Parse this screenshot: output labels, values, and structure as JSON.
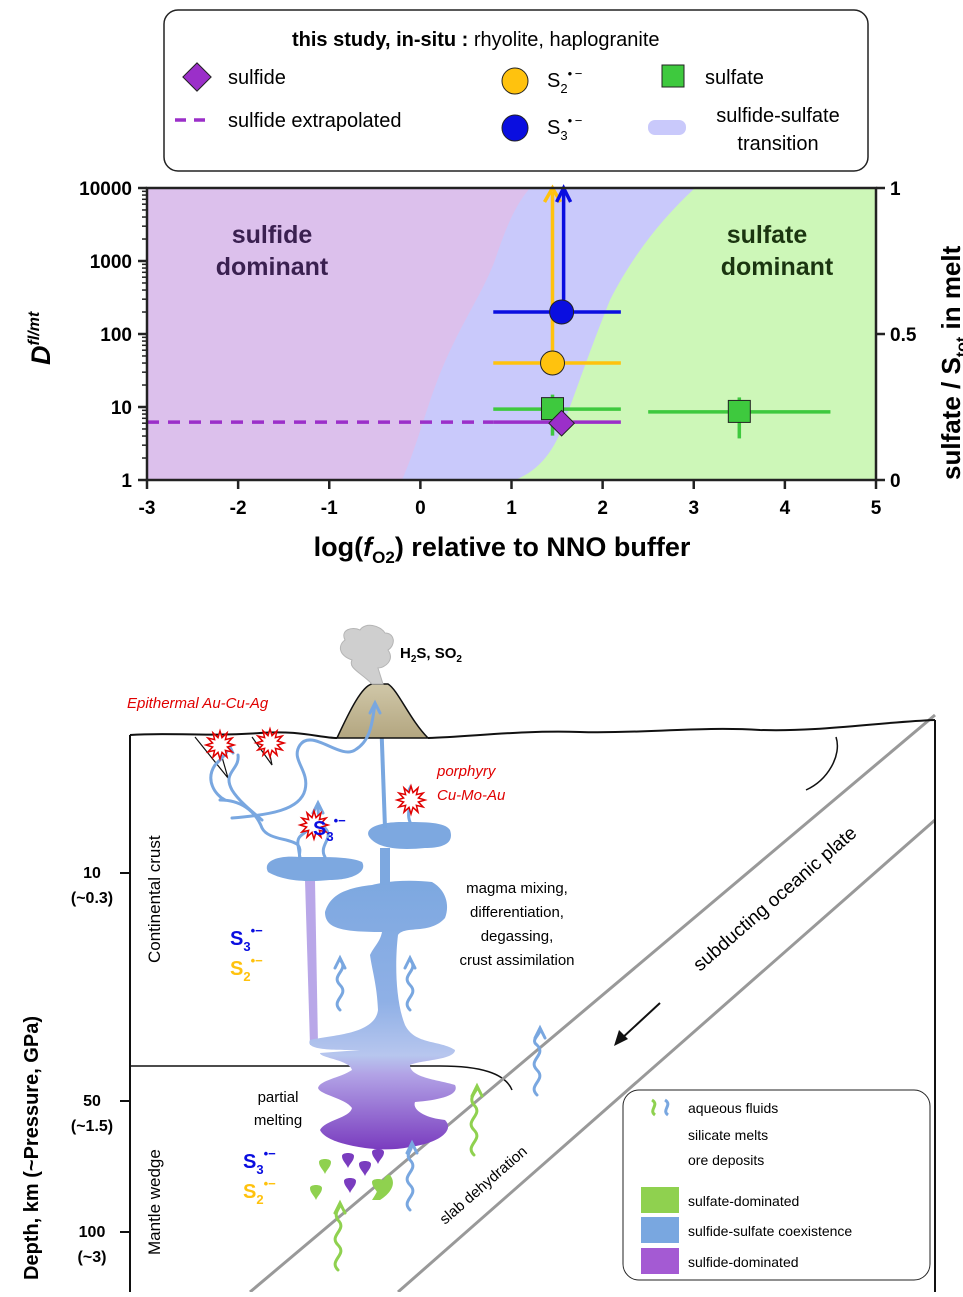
{
  "legend": {
    "title_bold": "this study, in-situ :",
    "title_rest": " rhyolite, haplogranite",
    "sulfide": "sulfide",
    "sulfide_extrapolated": "sulfide extrapolated",
    "s2_base": "S",
    "s2_sub": "2",
    "s2_sup": "• −",
    "s3_base": "S",
    "s3_sub": "3",
    "s3_sup": "• −",
    "sulfate": "sulfate",
    "transition_line1": "sulfide-sulfate",
    "transition_line2": "transition"
  },
  "chart_data": {
    "type": "scatter",
    "xlabel_prefix": "log(",
    "xlabel_f": "f",
    "xlabel_sub": "O2",
    "xlabel_suffix": ") relative to NNO buffer",
    "ylabel_main": "D",
    "ylabel_sup": "fl/mt",
    "y2label_prefix": "sulfate / S",
    "y2label_sub": "tot",
    "y2label_suffix": " in melt",
    "xlim": [
      -3,
      5
    ],
    "ylim": [
      1,
      10000
    ],
    "yscale": "log",
    "y2lim": [
      0,
      1
    ],
    "x_ticks": [
      "-3",
      "-2",
      "-1",
      "0",
      "1",
      "2",
      "3",
      "4",
      "5"
    ],
    "y_ticks": [
      "1",
      "10",
      "100",
      "1000",
      "10000"
    ],
    "y2_ticks": [
      "0",
      "0.5",
      "1"
    ],
    "regions": [
      {
        "label_line1": "sulfide",
        "label_line2": "dominant",
        "color": "#dcc0ec"
      },
      {
        "label_line1": "sulfate",
        "label_line2": "dominant",
        "color": "#cdf7b8"
      }
    ],
    "transition_color": "#c9c9fb",
    "series": [
      {
        "name": "sulfide",
        "marker": "diamond",
        "color": "#9b2fc9",
        "x": 1.55,
        "y": 6.0,
        "xerr": [
          0.8,
          2.2
        ]
      },
      {
        "name": "sulfide extrapolated",
        "marker": "dashed-line",
        "color": "#9b2fc9",
        "x": [
          -3,
          0.8
        ],
        "y": 6.2
      },
      {
        "name": "S2•−",
        "marker": "circle",
        "color": "#ffc20e",
        "x": 1.45,
        "y": 40,
        "xerr": [
          0.8,
          2.2
        ],
        "y_lower_limit": 10000
      },
      {
        "name": "S3•−",
        "marker": "circle",
        "color": "#0a0ee0",
        "x": 1.55,
        "y": 200,
        "xerr": [
          0.8,
          2.2
        ],
        "y_lower_limit": 10000
      },
      {
        "name": "sulfate",
        "marker": "square",
        "color": "#3ec93e",
        "points": [
          {
            "x": 1.45,
            "y": 9.5,
            "xerr": [
              0.8,
              2.2
            ]
          },
          {
            "x": 3.5,
            "y": 8.7,
            "xerr": [
              2.5,
              4.5
            ]
          }
        ]
      }
    ]
  },
  "diagram": {
    "gas_label_html": "H<tspan baseline-shift=\"sub\" font-size=\"9\">2</tspan>S, SO<tspan baseline-shift=\"sub\" font-size=\"9\">2</tspan>",
    "gas_1": "H",
    "gas_1_sub": "2",
    "gas_2": "S, SO",
    "gas_2_sub": "2",
    "epithermal": "Epithermal Au-Cu-Ag",
    "porphyry_1": "porphyry",
    "porphyry_2": "Cu-Mo-Au",
    "continental_crust": "Continental crust",
    "mantle_wedge": "Mantle wedge",
    "magma_1": "magma mixing,",
    "magma_2": "differentiation,",
    "magma_3": "degassing,",
    "magma_4": "crust assimilation",
    "partial_1": "partial",
    "partial_2": "melting",
    "subducting": "subducting oceanic plate",
    "slab": "slab dehydration",
    "depth_label": "Depth,  km  (~Pressure, GPa)",
    "depth_ticks": [
      {
        "depth": "10",
        "pressure": "(~0.3)"
      },
      {
        "depth": "50",
        "pressure": "(~1.5)"
      },
      {
        "depth": "100",
        "pressure": "(~3)"
      }
    ],
    "species_s": "S",
    "species_3": "3",
    "species_2": "2",
    "species_sup": "•−",
    "legend": {
      "aqueous": "aqueous fluids",
      "silicate": "silicate melts",
      "ore": "ore deposits",
      "sulfate_dom": "sulfate-dominated",
      "coexist": "sulfide-sulfate coexistence",
      "sulfide_dom": "sulfide-dominated",
      "color_sulfate": "#8fd14f",
      "color_coexist": "#79a7e0",
      "color_sulfide": "#a45ad3"
    }
  },
  "colors": {
    "s2": "#ffc20e",
    "s3": "#0a0ee0",
    "sulfate": "#3ec93e",
    "sulfide": "#9b2fc9",
    "ore_red": "#e00000",
    "fluid_blue": "#79a7e0",
    "fluid_green": "#8fd14f"
  }
}
